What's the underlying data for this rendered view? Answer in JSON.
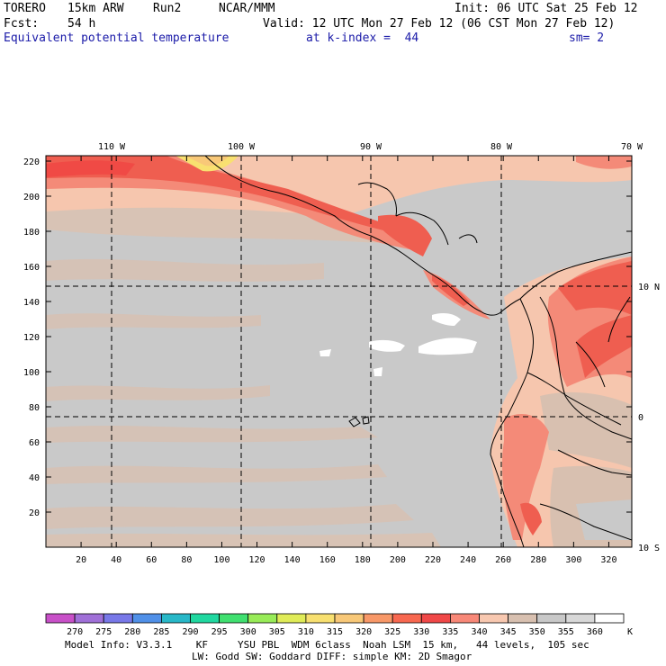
{
  "header": {
    "model": "TORERO",
    "resolution": "15km ARW",
    "run": "Run2",
    "org": "NCAR/MMM",
    "init": "Init: 06 UTC Sat 25 Feb 12",
    "fcst_label": "Fcst:",
    "fcst_value": "54 h",
    "valid": "Valid: 12 UTC Mon 27 Feb 12 (06 CST Mon 27 Feb 12)",
    "field": "Equivalent potential temperature",
    "level": "at k-index =  44",
    "smoothing": "sm= 2"
  },
  "map": {
    "lon_labels": [
      "110 W",
      "100 W",
      "90 W",
      "80 W",
      "70 W"
    ],
    "lat_labels": [
      "10 N",
      "0",
      "10 S"
    ],
    "y_ticks": [
      "20",
      "40",
      "60",
      "80",
      "100",
      "120",
      "140",
      "160",
      "180",
      "200",
      "220"
    ],
    "x_ticks": [
      "20",
      "40",
      "60",
      "80",
      "100",
      "120",
      "140",
      "160",
      "180",
      "200",
      "220",
      "240",
      "260",
      "280",
      "300",
      "320"
    ]
  },
  "colorbar": {
    "values": [
      "270",
      "275",
      "280",
      "285",
      "290",
      "295",
      "300",
      "305",
      "310",
      "315",
      "320",
      "325",
      "330",
      "335",
      "340",
      "345",
      "350",
      "355",
      "360"
    ],
    "unit": "K",
    "colors": [
      "#c850c8",
      "#a070d8",
      "#7878e8",
      "#5090e8",
      "#28b8c8",
      "#20d8a0",
      "#40e070",
      "#98ec58",
      "#e0ec58",
      "#f8e070",
      "#f8c878",
      "#f89868",
      "#f86850",
      "#f04848",
      "#f88878",
      "#f8c8b0",
      "#d8c0b0",
      "#c8c8c8",
      "#d8d8d8",
      "#ffffff"
    ]
  },
  "footer": {
    "line1": "Model Info: V3.3.1    KF     YSU PBL  WDM 6class  Noah LSM  15 km,   44 levels,  105 sec",
    "line2": "LW: Godd SW: Goddard DIFF: simple KM: 2D Smagor"
  }
}
